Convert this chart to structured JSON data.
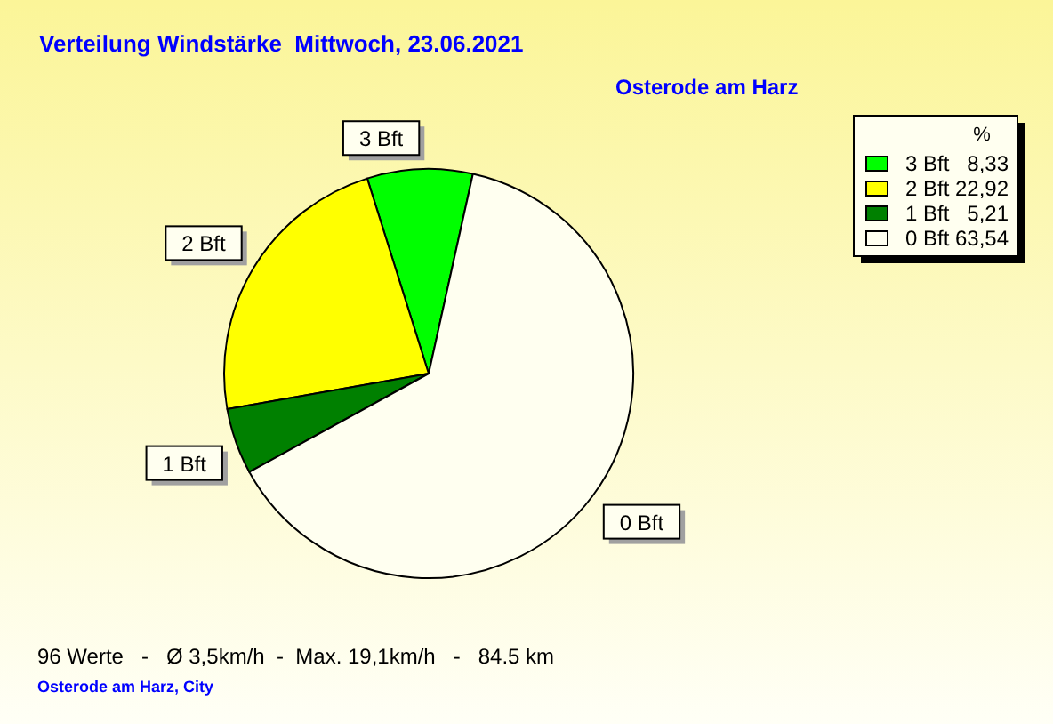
{
  "chart_data": {
    "type": "pie",
    "title": "Verteilung Windstärke  Mittwoch, 23.06.2021",
    "subtitle": "Osterode am Harz",
    "legend_title": "%",
    "categories": [
      "3 Bft",
      "2 Bft",
      "1 Bft",
      "0 Bft"
    ],
    "values": [
      8.33,
      22.92,
      5.21,
      63.54
    ],
    "colors": [
      "#00ff00",
      "#ffff00",
      "#008000",
      "#fffff0"
    ],
    "value_labels": [
      "8,33",
      "22,92",
      "5,21",
      "63,54"
    ],
    "legend": "top right",
    "annotations": [
      "96 Werte   -   Ø 3,5km/h  -  Max. 19,1km/h   -   84.5 km",
      "Osterode am Harz, City"
    ]
  }
}
